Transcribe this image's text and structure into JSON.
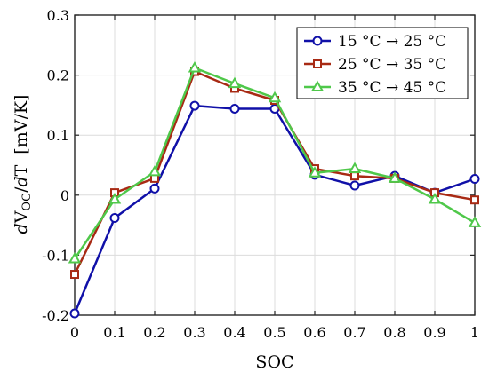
{
  "chart_data": {
    "type": "line",
    "title": "",
    "xlabel": "SOC",
    "ylabel": {
      "prefix_d": "d",
      "V": "V",
      "sub": "OC",
      "slash": "/",
      "dT_d": "d",
      "dT_T": "T",
      "unit": "[mV/K]"
    },
    "xlim": [
      0,
      1
    ],
    "ylim": [
      -0.2,
      0.3
    ],
    "grid": true,
    "legend_position": "top-right",
    "xticks": [
      0,
      0.1,
      0.2,
      0.3,
      0.4,
      0.5,
      0.6,
      0.7,
      0.8,
      0.9,
      1
    ],
    "xtick_labels": [
      "0",
      "0.1",
      "0.2",
      "0.3",
      "0.4",
      "0.5",
      "0.6",
      "0.7",
      "0.8",
      "0.9",
      "1"
    ],
    "yticks": [
      -0.2,
      -0.1,
      0,
      0.1,
      0.2,
      0.3
    ],
    "ytick_labels": [
      "-0.2",
      "-0.1",
      "0",
      "0.1",
      "0.2",
      "0.3"
    ],
    "x": [
      0,
      0.1,
      0.2,
      0.3,
      0.4,
      0.5,
      0.6,
      0.7,
      0.8,
      0.9,
      1
    ],
    "series": [
      {
        "name": "15 °C → 25 °C",
        "color": "#1010a8",
        "marker": "circle",
        "values": [
          -0.197,
          -0.038,
          0.011,
          0.149,
          0.144,
          0.144,
          0.034,
          0.016,
          0.032,
          0.004,
          0.027
        ]
      },
      {
        "name": "25 °C → 35 °C",
        "color": "#a82a14",
        "marker": "square",
        "values": [
          -0.132,
          0.004,
          0.028,
          0.206,
          0.178,
          0.158,
          0.044,
          0.032,
          0.028,
          0.004,
          -0.008
        ]
      },
      {
        "name": "35 °C → 45 °C",
        "color": "#4fc84a",
        "marker": "triangle",
        "values": [
          -0.106,
          -0.007,
          0.039,
          0.212,
          0.186,
          0.162,
          0.037,
          0.044,
          0.028,
          -0.007,
          -0.046
        ]
      }
    ]
  }
}
